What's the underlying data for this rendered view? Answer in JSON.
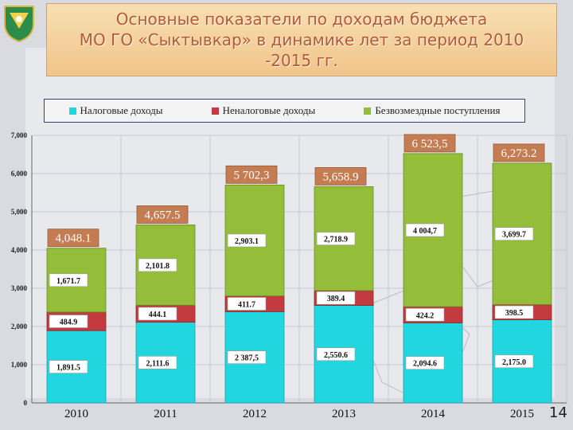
{
  "header": {
    "title": "Основные показатели по доходам бюджета\nМО ГО «Сыктывкар» в динамике лет за период 2010\n-2015 гг."
  },
  "page_number": "14",
  "colors": {
    "tax": "#22d6e0",
    "nontax": "#c33a3f",
    "grants": "#94bd3a",
    "total_label_bg": "#c47d52"
  },
  "chart_data": {
    "type": "bar",
    "stacked": true,
    "categories": [
      "2010",
      "2011",
      "2012",
      "2013",
      "2014",
      "2015"
    ],
    "series": [
      {
        "name": "Налоговые доходы",
        "values": [
          1891.5,
          2111.6,
          2387.5,
          2550.6,
          2094.6,
          2175.0
        ],
        "labels": [
          "1,891.5",
          "2,111.6",
          "2 387,5",
          "2,550.6",
          "2,094.6",
          "2,175.0"
        ]
      },
      {
        "name": "Неналоговые доходы",
        "values": [
          484.9,
          444.1,
          411.7,
          389.4,
          424.2,
          398.5
        ],
        "labels": [
          "484.9",
          "444.1",
          "411.7",
          "389.4",
          "424.2",
          "398.5"
        ]
      },
      {
        "name": "Безвозмездные поступления",
        "values": [
          1671.7,
          2101.8,
          2903.1,
          2718.9,
          4004.7,
          3699.7
        ],
        "labels": [
          "1,671.7",
          "2,101.8",
          "2,903.1",
          "2,718.9",
          "4 004,7",
          "3,699.7"
        ]
      }
    ],
    "totals": [
      "4,048.1",
      "4,657.5",
      "5 702,3",
      "5,658.9",
      "6 523,5",
      "6,273.2"
    ],
    "total_values": [
      4048.1,
      4657.5,
      5702.3,
      5658.9,
      6523.5,
      6273.2
    ],
    "y_ticks": [
      "0",
      "1,000",
      "2,000",
      "3,000",
      "4,000",
      "5,000",
      "6,000",
      "7,000"
    ],
    "ylim": [
      0,
      7000
    ],
    "grid": true,
    "legend": "top"
  }
}
